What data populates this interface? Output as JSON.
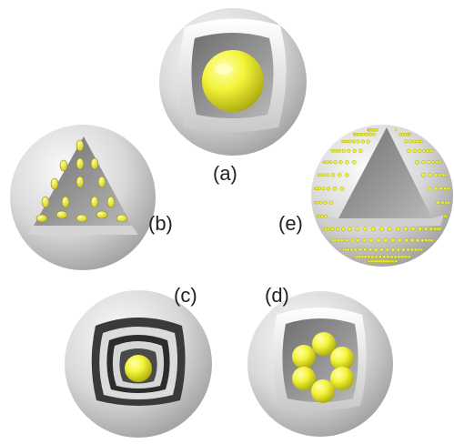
{
  "labels": {
    "a": "(a)",
    "b": "(b)",
    "c": "(c)",
    "d": "(d)",
    "e": "(e)"
  },
  "colors": {
    "background": "#ffffff",
    "shell_light": "#f0f0f0",
    "shell_dark": "#8a8a8a",
    "cavity": "#8c8c8c",
    "particle": "#f2f230",
    "particle_edge": "#9a9a10",
    "ring_dark": "#2a2a2a"
  }
}
